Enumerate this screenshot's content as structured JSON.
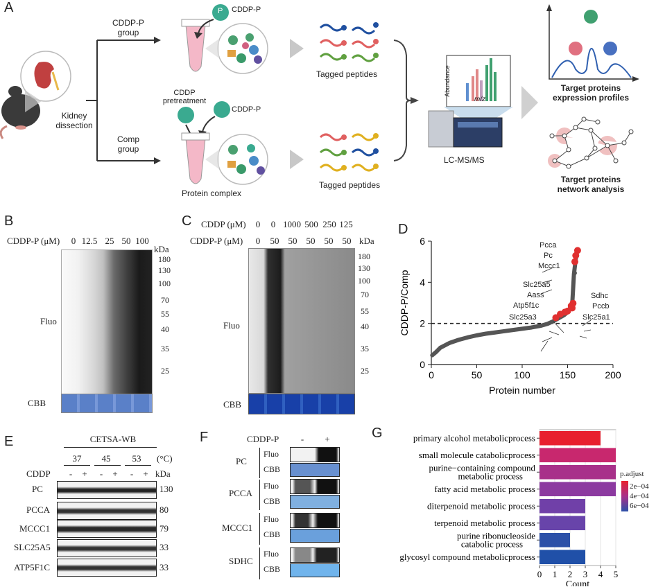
{
  "panelA": {
    "label": "A",
    "kidney": "Kidney\ndissection",
    "group1": "CDDP-P\ngroup",
    "group2": "Comp\ngroup",
    "cddp_p_1": "CDDP-P",
    "cddp_p_2": "CDDP-P",
    "p_badge": "P",
    "pretreat": "CDDP\npretreatment",
    "tagged1": "Tagged peptides",
    "tagged2": "Tagged peptides",
    "complex": "Protein complex",
    "ms_abundance": "Abundance",
    "ms_mz": "m/z",
    "lcms": "LC-MS/MS",
    "expr": "Target proteins\nexpression profiles",
    "network": "Target proteins\nnetwork analysis"
  },
  "panelB": {
    "label": "B",
    "conc_title": "CDDP-P (μM)",
    "concs": [
      "0",
      "12.5",
      "25",
      "50",
      "100"
    ],
    "kda": "kDa",
    "markers": [
      "180",
      "130",
      "100",
      "70",
      "55",
      "40",
      "35",
      "25"
    ],
    "fluo": "Fluo",
    "cbb": "CBB"
  },
  "panelC": {
    "label": "C",
    "row1_title": "CDDP (μM)",
    "row1": [
      "0",
      "0",
      "1000",
      "500",
      "250",
      "125"
    ],
    "row2_title": "CDDP-P (μM)",
    "row2": [
      "0",
      "50",
      "50",
      "50",
      "50",
      "50"
    ],
    "kda": "kDa",
    "markers": [
      "180",
      "130",
      "100",
      "70",
      "55",
      "40",
      "35",
      "25"
    ],
    "fluo": "Fluo",
    "cbb": "CBB"
  },
  "panelD": {
    "label": "D",
    "annotations": [
      "Pcca",
      "Pc",
      "Mccc1",
      "Slc25a5",
      "Aass",
      "Atp5f1c",
      "Slc25a3",
      "Sdhc",
      "Pccb",
      "Slc25a1"
    ]
  },
  "panelE": {
    "label": "E",
    "title": "CETSA-WB",
    "temps": [
      "37",
      "45",
      "53"
    ],
    "temp_unit": "(°C)",
    "cddp": "CDDP",
    "signs": [
      "-",
      "+",
      "-",
      "+",
      "-",
      "+"
    ],
    "kda": "kDa",
    "proteins": [
      "PC",
      "PCCA",
      "MCCC1",
      "SLC25A5",
      "ATP5F1C"
    ],
    "sizes": [
      "130",
      "80",
      "79",
      "33",
      "33"
    ]
  },
  "panelF": {
    "label": "F",
    "title": "CDDP-P",
    "signs": [
      "-",
      "+"
    ],
    "proteins": [
      "PC",
      "PCCA",
      "MCCC1",
      "SDHC"
    ],
    "fluo": "Fluo",
    "cbb": "CBB"
  },
  "panelG": {
    "label": "G",
    "legend_title": "p.adjust",
    "legend_ticks": [
      "2e−04",
      "4e−04",
      "6e−04"
    ]
  },
  "chart_data": [
    {
      "id": "D",
      "type": "scatter",
      "title": "",
      "xlabel": "Protein number",
      "ylabel": "CDDP-P/Comp",
      "xlim": [
        0,
        200
      ],
      "ylim": [
        0,
        6
      ],
      "xticks": [
        0,
        50,
        100,
        150,
        200
      ],
      "yticks": [
        0,
        2,
        4,
        6
      ],
      "threshold": 2,
      "series": [
        {
          "name": "all proteins",
          "color": "#555555",
          "x": [
            1,
            5,
            10,
            20,
            30,
            40,
            50,
            60,
            70,
            80,
            90,
            100,
            110,
            120,
            128,
            134,
            140,
            146,
            150,
            152,
            155,
            157,
            160
          ],
          "y": [
            0.45,
            0.6,
            0.82,
            1.05,
            1.2,
            1.32,
            1.42,
            1.5,
            1.56,
            1.62,
            1.68,
            1.74,
            1.8,
            1.88,
            1.98,
            2.1,
            2.25,
            2.4,
            2.55,
            2.7,
            2.85,
            4.4,
            5.5
          ]
        },
        {
          "name": "targets",
          "color": "#e03030",
          "points": [
            {
              "name": "Pcca",
              "x": 161,
              "y": 5.55
            },
            {
              "name": "Pc",
              "x": 159,
              "y": 5.3
            },
            {
              "name": "Mccc1",
              "x": 158,
              "y": 5.0
            },
            {
              "name": "Slc25a5",
              "x": 154,
              "y": 2.85
            },
            {
              "name": "Aass",
              "x": 147,
              "y": 2.55
            },
            {
              "name": "Atp5f1c",
              "x": 142,
              "y": 2.45
            },
            {
              "name": "Slc25a3",
              "x": 137,
              "y": 2.28
            },
            {
              "name": "Sdhc",
              "x": 156,
              "y": 2.98
            },
            {
              "name": "Pccb",
              "x": 155,
              "y": 2.75
            },
            {
              "name": "Slc25a1",
              "x": 150,
              "y": 2.6
            }
          ]
        },
        {
          "name": "outlier",
          "color": "#555555",
          "points": [
            {
              "x": 158,
              "y": 4.45
            }
          ]
        }
      ]
    },
    {
      "id": "G",
      "type": "bar",
      "orientation": "horizontal",
      "xlabel": "Count",
      "xlim": [
        0,
        5
      ],
      "xticks": [
        0,
        1,
        2,
        3,
        4,
        5
      ],
      "categories": [
        "primary alcohol metabolicprocess",
        "small molecule catabolicprocess",
        "purine−containing compound metabolic process",
        "fatty acid metabolic process",
        "diterpenoid metabolic process",
        "terpenoid metabolic process",
        "purine ribonucleoside catabolic process",
        "glycosyl compound metabolicprocess"
      ],
      "values": [
        4,
        5,
        5,
        5,
        3,
        3,
        2,
        3
      ],
      "colors": [
        "#e8202e",
        "#c8286e",
        "#a8308a",
        "#8c3aa0",
        "#7040a8",
        "#6844aa",
        "#2c50a8",
        "#2050a8"
      ]
    }
  ]
}
